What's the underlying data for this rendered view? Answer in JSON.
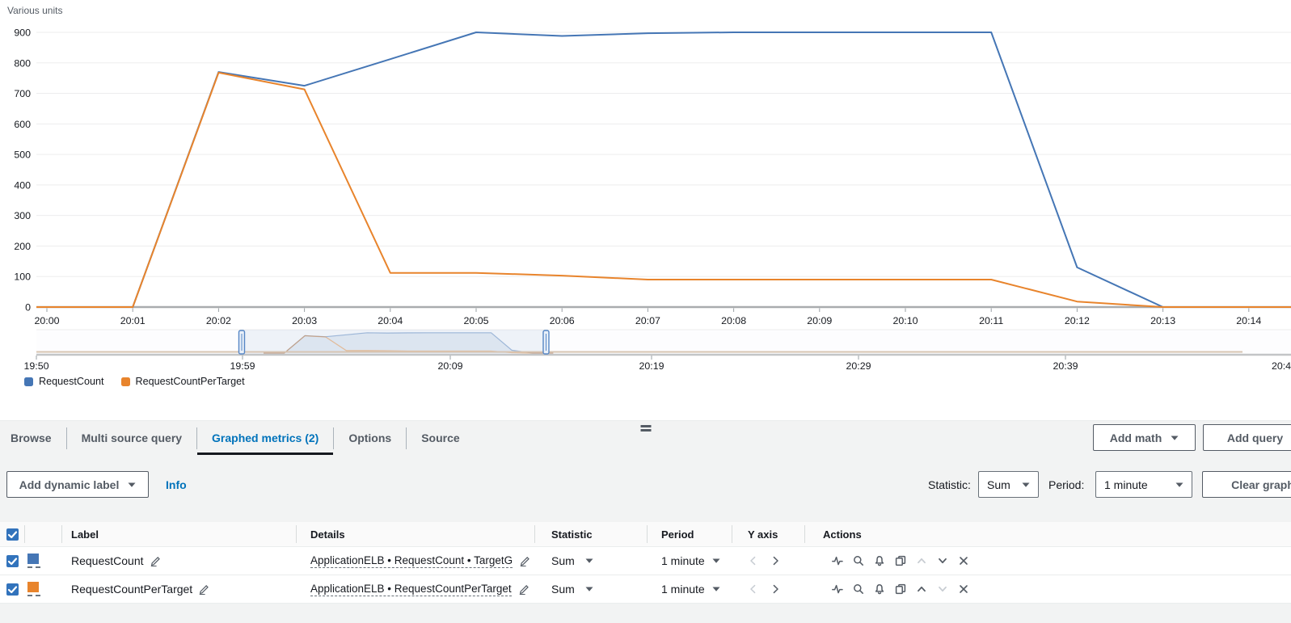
{
  "chart_data": {
    "type": "line",
    "title": "Various units",
    "x": [
      "20:00",
      "20:01",
      "20:02",
      "20:03",
      "20:04",
      "20:05",
      "20:06",
      "20:07",
      "20:08",
      "20:09",
      "20:10",
      "20:11",
      "20:12",
      "20:13",
      "20:14"
    ],
    "y_ticks": [
      0,
      100,
      200,
      300,
      400,
      500,
      600,
      700,
      800,
      900
    ],
    "ylim": [
      0,
      900
    ],
    "grid": "horizontal",
    "legend_position": "bottom-left",
    "series": [
      {
        "name": "RequestCount",
        "color": "#4576b5",
        "values": [
          0,
          0,
          770,
          725,
          812,
          900,
          888,
          897,
          900,
          900,
          900,
          900,
          130,
          0,
          0
        ]
      },
      {
        "name": "RequestCountPerTarget",
        "color": "#e8842c",
        "values": [
          0,
          0,
          768,
          713,
          112,
          112,
          103,
          90,
          90,
          90,
          90,
          90,
          18,
          0,
          0
        ]
      }
    ],
    "timeline": {
      "labels": [
        "19:50",
        "19:59",
        "20:09",
        "20:19",
        "20:29",
        "20:39",
        "20:4"
      ]
    }
  },
  "tabs": {
    "items": [
      {
        "label": "Browse"
      },
      {
        "label": "Multi source query"
      },
      {
        "label": "Graphed metrics (2)"
      },
      {
        "label": "Options"
      },
      {
        "label": "Source"
      }
    ]
  },
  "toolbar": {
    "add_math": "Add math",
    "add_query": "Add query",
    "add_dynamic_label": "Add dynamic label",
    "info": "Info",
    "statistic_label": "Statistic:",
    "statistic_value": "Sum",
    "period_label": "Period:",
    "period_value": "1 minute",
    "clear_graph": "Clear graph"
  },
  "table": {
    "columns": {
      "label": "Label",
      "details": "Details",
      "statistic": "Statistic",
      "period": "Period",
      "y_axis": "Y axis",
      "actions": "Actions"
    },
    "rows": [
      {
        "checked": true,
        "color": "#4576b5",
        "label": "RequestCount",
        "details": "ApplicationELB • RequestCount • TargetG",
        "statistic": "Sum",
        "period": "1 minute"
      },
      {
        "checked": true,
        "color": "#e8842c",
        "label": "RequestCountPerTarget",
        "details": "ApplicationELB • RequestCountPerTarget",
        "statistic": "Sum",
        "period": "1 minute"
      }
    ]
  }
}
